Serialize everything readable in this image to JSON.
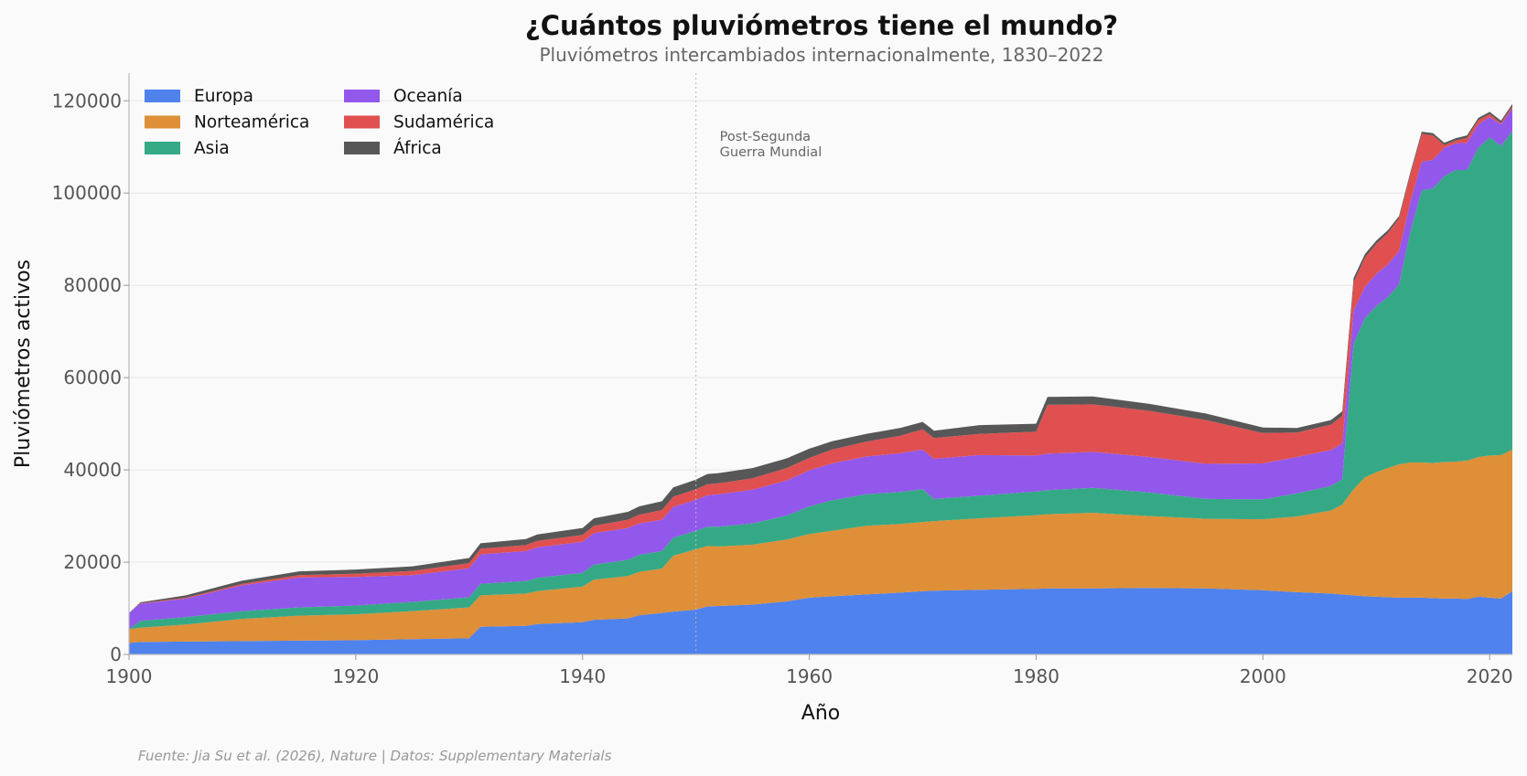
{
  "chart_data": {
    "type": "area",
    "stacked": true,
    "title": "¿Cuántos pluviómetros tiene el mundo?",
    "subtitle": "Pluviómetros intercambiados internacionalmente, 1830–2022",
    "xlabel": "Año",
    "ylabel": "Pluviómetros activos",
    "xlim": [
      1900,
      2022
    ],
    "ylim": [
      0,
      126000
    ],
    "xticks": [
      1900,
      1920,
      1940,
      1960,
      1980,
      2000,
      2020
    ],
    "yticks": [
      0,
      20000,
      40000,
      60000,
      80000,
      100000,
      120000
    ],
    "grid": "horizontal",
    "legend_position": "top-left",
    "source": "Fuente: Jia Su et al. (2026), Nature | Datos: Supplementary Materials",
    "annotations": [
      {
        "x": 1950,
        "lines": [
          "Post-Segunda",
          "Guerra Mundial"
        ]
      }
    ],
    "x": [
      1900,
      1901,
      1905,
      1910,
      1915,
      1920,
      1925,
      1930,
      1931,
      1935,
      1936,
      1940,
      1941,
      1944,
      1945,
      1947,
      1948,
      1950,
      1951,
      1952,
      1955,
      1958,
      1960,
      1962,
      1965,
      1968,
      1970,
      1971,
      1975,
      1980,
      1981,
      1985,
      1990,
      1995,
      2000,
      2003,
      2006,
      2007,
      2008,
      2009,
      2010,
      2011,
      2012,
      2013,
      2014,
      2015,
      2016,
      2017,
      2018,
      2019,
      2020,
      2021,
      2022
    ],
    "series": [
      {
        "name": "Europa",
        "color": "#4f82ed",
        "values": [
          2500,
          2700,
          2800,
          2900,
          3000,
          3100,
          3300,
          3500,
          6000,
          6200,
          6600,
          7000,
          7500,
          7800,
          8500,
          9000,
          9300,
          9700,
          10400,
          10500,
          10800,
          11500,
          12300,
          12600,
          13000,
          13400,
          13700,
          13800,
          14000,
          14200,
          14300,
          14300,
          14400,
          14300,
          13900,
          13500,
          13200,
          13000,
          12800,
          12600,
          12500,
          12400,
          12300,
          12300,
          12300,
          12200,
          12100,
          12100,
          12000,
          12500,
          12300,
          12100,
          13700
        ]
      },
      {
        "name": "Norteamérica",
        "color": "#de8f38",
        "values": [
          3000,
          3100,
          3700,
          4800,
          5400,
          5600,
          6100,
          6700,
          6800,
          7000,
          7100,
          7700,
          8700,
          9200,
          9400,
          9600,
          12100,
          13100,
          13100,
          12900,
          13000,
          13400,
          13800,
          14200,
          14900,
          14900,
          15000,
          15100,
          15500,
          16000,
          16100,
          16400,
          15600,
          15100,
          15400,
          16400,
          18000,
          19500,
          23000,
          25800,
          27000,
          28000,
          28900,
          29300,
          29300,
          29300,
          29600,
          29700,
          30000,
          30300,
          30800,
          31100,
          30700
        ]
      },
      {
        "name": "Asia",
        "color": "#35a985",
        "values": [
          0,
          1500,
          1600,
          1700,
          1800,
          1900,
          2000,
          2200,
          2500,
          2700,
          2900,
          3000,
          3300,
          3500,
          3700,
          3800,
          3900,
          4000,
          4200,
          4300,
          4600,
          5200,
          6000,
          6600,
          6800,
          6900,
          7100,
          4800,
          4900,
          5100,
          5200,
          5400,
          5100,
          4300,
          4300,
          5000,
          5300,
          5500,
          31500,
          34500,
          36000,
          37000,
          39000,
          50000,
          59000,
          59500,
          62000,
          63200,
          63000,
          67000,
          69000,
          67000,
          69000
        ]
      },
      {
        "name": "Oceanía",
        "color": "#9258ec",
        "values": [
          3500,
          3700,
          4000,
          5600,
          6500,
          6200,
          5800,
          6300,
          6400,
          6500,
          6600,
          6700,
          6800,
          6900,
          6800,
          6800,
          6700,
          6700,
          6800,
          7000,
          7300,
          7600,
          7800,
          8000,
          8200,
          8400,
          8600,
          8700,
          8800,
          7800,
          7900,
          7800,
          7700,
          7600,
          7800,
          7900,
          7800,
          7700,
          7200,
          6800,
          7000,
          7100,
          7200,
          6400,
          6200,
          6200,
          6100,
          5800,
          5900,
          5100,
          4400,
          4700,
          4900
        ]
      },
      {
        "name": "Sudamérica",
        "color": "#e05050",
        "values": [
          0,
          100,
          200,
          300,
          500,
          700,
          900,
          1100,
          1200,
          1300,
          1400,
          1500,
          1600,
          1800,
          1900,
          2100,
          2200,
          2300,
          2400,
          2400,
          2500,
          2700,
          2700,
          3000,
          3200,
          3800,
          4400,
          4500,
          4600,
          5200,
          10600,
          10300,
          10000,
          9500,
          6600,
          5300,
          5500,
          6000,
          6200,
          6300,
          6500,
          6800,
          7100,
          6000,
          6000,
          5300,
          600,
          600,
          1100,
          900,
          600,
          300,
          500
        ]
      },
      {
        "name": "África",
        "color": "#575757",
        "values": [
          0,
          200,
          500,
          700,
          800,
          900,
          1000,
          1100,
          1200,
          1300,
          1400,
          1500,
          1600,
          1700,
          1800,
          1900,
          2000,
          2100,
          2200,
          2200,
          2200,
          2100,
          2000,
          1800,
          1700,
          1700,
          1600,
          1600,
          1900,
          1700,
          1700,
          1700,
          1500,
          1400,
          1200,
          1000,
          1000,
          1000,
          900,
          800,
          700,
          600,
          500,
          500,
          500,
          500,
          500,
          500,
          500,
          500,
          500,
          500,
          500
        ]
      }
    ]
  }
}
